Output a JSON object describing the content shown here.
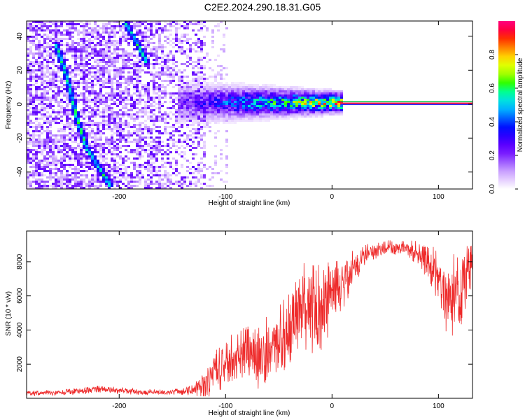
{
  "title": "C2E2.2024.290.18.31.G05",
  "chart_data": [
    {
      "type": "heatmap",
      "xlabel": "Height of straight line (km)",
      "ylabel": "Frequency (Hz)",
      "xlim": [
        -287,
        132
      ],
      "ylim": [
        -50,
        49
      ],
      "xticks": [
        -200,
        -100,
        0,
        100
      ],
      "yticks": [
        -40,
        -20,
        0,
        20,
        40
      ],
      "colorbar": {
        "label": "Normalized spectral amplitude",
        "range": [
          0,
          1
        ],
        "ticks": [
          "0.0",
          "0.2",
          "0.4",
          "0.6",
          "0.8"
        ],
        "tick_values": [
          0.0,
          0.2,
          0.4,
          0.6,
          0.8
        ],
        "colors": [
          "#ffffff",
          "#e6d0ff",
          "#c9a0ff",
          "#a060ff",
          "#7a1eff",
          "#5a00ff",
          "#2a00ff",
          "#0010ff",
          "#0060ff",
          "#00b0ff",
          "#00e0e0",
          "#00ff90",
          "#30ff00",
          "#a0ff00",
          "#e0ff00",
          "#ffd000",
          "#ff8000",
          "#ff3000",
          "#ff0040",
          "#ff0080"
        ]
      },
      "features": {
        "carrier_line": {
          "x_start": 8,
          "x_end": 132,
          "freq": 0.5
        },
        "diagonal_traces": [
          {
            "x": [
              -260,
              -250,
              -240,
              -232,
              -222,
              -210
            ],
            "freq": [
              35,
              15,
              -10,
              -25,
              -35,
              -47
            ]
          },
          {
            "x": [
              -195,
              -188,
              -182,
              -176
            ],
            "freq": [
              48,
              40,
              33,
              26
            ]
          }
        ]
      },
      "grid": false
    },
    {
      "type": "line",
      "xlabel": "Height of straight line (km)",
      "ylabel": "SNR (10 * v/v)",
      "xlim": [
        -287,
        132
      ],
      "ylim": [
        0,
        9800
      ],
      "xticks": [
        -200,
        -100,
        0,
        100
      ],
      "yticks": [
        2000,
        4000,
        6000,
        8000
      ],
      "color": "#ee2b2b",
      "series": [
        {
          "x": [
            -287,
            -260,
            -240,
            -220,
            -200,
            -180,
            -160,
            -140,
            -130,
            -120,
            -110,
            -100,
            -90,
            -80,
            -70,
            -60,
            -50,
            -40,
            -30,
            -20,
            -10,
            0,
            10,
            20,
            30,
            40,
            50,
            60,
            70,
            80,
            90,
            100,
            110,
            120,
            132
          ],
          "y": [
            300,
            320,
            400,
            520,
            450,
            380,
            350,
            400,
            500,
            800,
            1500,
            2100,
            2500,
            2700,
            2300,
            3000,
            3400,
            4000,
            5300,
            5500,
            5000,
            6500,
            6700,
            7600,
            8400,
            8600,
            8800,
            8800,
            8700,
            8600,
            8200,
            6600,
            6000,
            6200,
            8400
          ],
          "spread": [
            180,
            180,
            200,
            220,
            200,
            180,
            170,
            200,
            400,
            900,
            1300,
            1400,
            1500,
            1600,
            1800,
            2000,
            2200,
            2400,
            2600,
            2800,
            2800,
            2000,
            1500,
            1200,
            700,
            500,
            450,
            450,
            500,
            700,
            1300,
            2000,
            2500,
            2500,
            1500
          ]
        }
      ],
      "grid": false
    }
  ]
}
